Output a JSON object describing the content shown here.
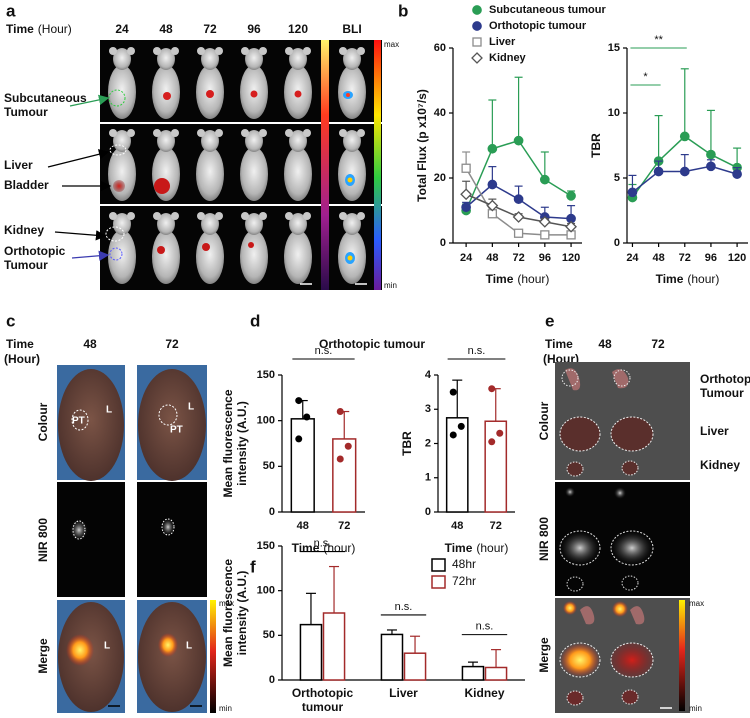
{
  "panel_labels": [
    "a",
    "b",
    "c",
    "d",
    "e",
    "f"
  ],
  "panel_a": {
    "time_label": "Time",
    "time_unit": "(Hour)",
    "columns": [
      "24",
      "48",
      "72",
      "96",
      "120",
      "BLI"
    ],
    "rows": [
      "Subcutaneous Tumour",
      "Liver",
      "Bladder",
      "Kidney",
      "Orthotopic Tumour"
    ],
    "scale": [
      "max",
      "min"
    ]
  },
  "panel_c": {
    "time_label": "Time",
    "time_unit": "(Hour)",
    "columns": [
      "48",
      "72"
    ],
    "rows": [
      "Colour",
      "NIR 800",
      "Merge"
    ],
    "markers": [
      "L",
      "PT",
      "L",
      "PT",
      "L",
      "L"
    ],
    "scale": [
      "max",
      "min"
    ]
  },
  "panel_d": {
    "title": "Orthotopic tumour"
  },
  "panel_e": {
    "time_label": "Time",
    "time_unit": "(Hour)",
    "columns": [
      "48",
      "72"
    ],
    "rows": [
      "Colour",
      "NIR 800",
      "Merge"
    ],
    "organs": [
      "Orthotopic Tumour",
      "Liver",
      "Kidney"
    ],
    "scale": [
      "max",
      "min"
    ]
  },
  "chart_data": [
    {
      "type": "line",
      "ylabel": [
        "Total Flux (p x10⁷/s)"
      ],
      "xlabel": "Time",
      "xunit": "(hour)",
      "x": [
        24,
        48,
        72,
        96,
        120
      ],
      "xlim": [
        12,
        130
      ],
      "xticks": [
        24,
        48,
        72,
        96,
        120
      ],
      "ylim": [
        0,
        60
      ],
      "yticks": [
        0,
        20,
        40,
        60
      ],
      "legend": "top",
      "series": [
        {
          "name": "Subcutaneous tumour",
          "color": "#2a9d55",
          "marker": "circle",
          "filled": true,
          "values": [
            10,
            29,
            31.5,
            19.5,
            14.5
          ],
          "errors": [
            2,
            15,
            19.5,
            8.5,
            1.5
          ]
        },
        {
          "name": "Orthotopic tumour",
          "color": "#2d3a8c",
          "marker": "circle",
          "filled": true,
          "values": [
            11,
            18,
            13.5,
            8,
            7.5
          ],
          "errors": [
            1.5,
            5.5,
            4,
            3,
            4
          ]
        },
        {
          "name": "Liver",
          "color": "#8c8c8c",
          "marker": "square",
          "filled": false,
          "values": [
            23,
            9,
            3,
            2.5,
            2.5
          ],
          "errors": [
            5,
            2,
            0.5,
            0.5,
            0.5
          ]
        },
        {
          "name": "Kidney",
          "color": "#555555",
          "marker": "diamond",
          "filled": false,
          "values": [
            15,
            11.5,
            8,
            6.5,
            5
          ],
          "errors": [
            4,
            2,
            1,
            1,
            1
          ]
        }
      ]
    },
    {
      "type": "line",
      "ylabel": [
        "TBR"
      ],
      "xlabel": "Time",
      "xunit": "(hour)",
      "x": [
        24,
        48,
        72,
        96,
        120
      ],
      "xlim": [
        19,
        130
      ],
      "xticks": [
        24,
        48,
        72,
        96,
        120
      ],
      "ylim": [
        0,
        15
      ],
      "yticks": [
        0,
        5,
        10,
        15
      ],
      "annotations": [
        "*",
        "**"
      ],
      "series": [
        {
          "color": "#2a9d55",
          "marker": "circle",
          "filled": true,
          "values": [
            3.5,
            6.3,
            8.2,
            6.8,
            5.8
          ],
          "errors": [
            1,
            3.5,
            5.2,
            3.4,
            1.5
          ]
        },
        {
          "color": "#2d3a8c",
          "marker": "circle",
          "filled": true,
          "values": [
            3.9,
            5.5,
            5.5,
            5.9,
            5.3
          ],
          "errors": [
            1.3,
            0.8,
            1.3,
            0.5,
            0.5
          ]
        }
      ]
    },
    {
      "type": "bar",
      "ylabel": [
        "Mean fluorescence",
        "intensity (A.U.)"
      ],
      "xlabel": "Time",
      "xunit": "(hour)",
      "categories": [
        "48",
        "72"
      ],
      "colors": [
        "#000000",
        "#a32a2a"
      ],
      "values": [
        102,
        80
      ],
      "errors": [
        20,
        30
      ],
      "points": [
        [
          122,
          104,
          80
        ],
        [
          110,
          72,
          58
        ]
      ],
      "ylim": [
        0,
        150
      ],
      "yticks": [
        0,
        50,
        100,
        150
      ],
      "annotations": [
        "n.s."
      ]
    },
    {
      "type": "bar",
      "ylabel": [
        "TBR"
      ],
      "xlabel": "Time",
      "xunit": "(hour)",
      "categories": [
        "48",
        "72"
      ],
      "colors": [
        "#000000",
        "#a32a2a"
      ],
      "values": [
        2.75,
        2.65
      ],
      "errors": [
        1.1,
        0.95
      ],
      "points": [
        [
          3.5,
          2.5,
          2.25
        ],
        [
          3.6,
          2.3,
          2.05
        ]
      ],
      "ylim": [
        0,
        4
      ],
      "yticks": [
        0,
        1,
        2,
        3,
        4
      ],
      "annotations": [
        "n.s."
      ]
    },
    {
      "type": "bar",
      "ylabel": [
        "Mean fluorescence",
        "intensity (A.U.)"
      ],
      "categories": [
        "Orthotopic tumour",
        "Liver",
        "Kidney"
      ],
      "series": [
        {
          "name": "48hr",
          "color": "#000000",
          "values": [
            62,
            51,
            15
          ],
          "errors": [
            35,
            5,
            5
          ]
        },
        {
          "name": "72hr",
          "color": "#a32a2a",
          "values": [
            75,
            30,
            14
          ],
          "errors": [
            52,
            19,
            20
          ]
        }
      ],
      "ylim": [
        0,
        150
      ],
      "yticks": [
        0,
        50,
        100,
        150
      ],
      "legend": "upper right",
      "annotations": [
        "n.s.",
        "n.s.",
        "n.s."
      ]
    }
  ]
}
